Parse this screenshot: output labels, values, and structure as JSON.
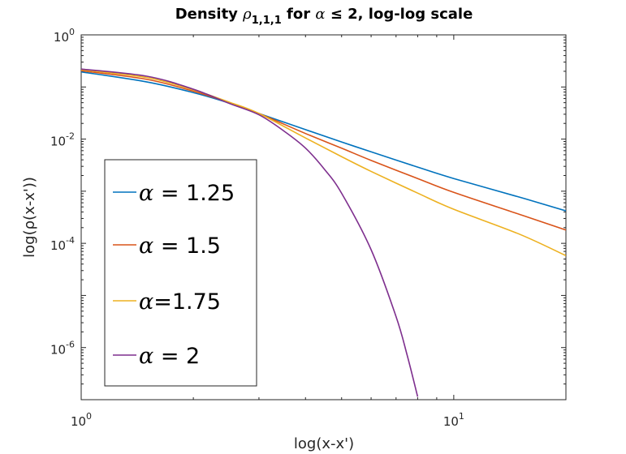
{
  "chart_data": {
    "type": "line",
    "title": {
      "prefix": "Density ",
      "symbol": "ρ",
      "subscript": "1,1,1",
      "middle": " for ",
      "alpha": "α",
      "condition": " ≤ 2, log-log scale"
    },
    "xlabel": "log(x-x')",
    "ylabel": "log(ρ(x-x'))",
    "x_scale": "log",
    "y_scale": "log",
    "xlim": [
      1,
      20
    ],
    "ylim": [
      1e-07,
      1
    ],
    "x_ticks": [
      {
        "value": 1,
        "base": "10",
        "exp": "0"
      },
      {
        "value": 10,
        "base": "10",
        "exp": "1"
      }
    ],
    "y_ticks": [
      {
        "value": 1,
        "base": "10",
        "exp": "0"
      },
      {
        "value": 0.01,
        "base": "10",
        "exp": "-2"
      },
      {
        "value": 0.0001,
        "base": "10",
        "exp": "-4"
      },
      {
        "value": 1e-06,
        "base": "10",
        "exp": "-6"
      }
    ],
    "grid": false,
    "legend_position": "left",
    "series": [
      {
        "label_symbol": "α",
        "label_rest": " = 1.25",
        "color": "#0072BD",
        "x": [
          1,
          1.5,
          2,
          2.5,
          3,
          4,
          5,
          6,
          8,
          10,
          15,
          20
        ],
        "y": [
          0.195,
          0.125,
          0.078,
          0.049,
          0.031,
          0.0152,
          0.0088,
          0.0057,
          0.0029,
          0.00175,
          0.00077,
          0.00042
        ]
      },
      {
        "label_symbol": "α",
        "label_rest": " = 1.5",
        "color": "#D95319",
        "x": [
          1,
          1.5,
          2,
          2.5,
          3,
          4,
          5,
          6,
          8,
          10,
          15,
          20
        ],
        "y": [
          0.205,
          0.14,
          0.083,
          0.05,
          0.031,
          0.0128,
          0.0067,
          0.0039,
          0.00175,
          0.00095,
          0.00036,
          0.00018
        ]
      },
      {
        "label_symbol": "α",
        "label_rest": "=1.75",
        "color": "#EDB120",
        "x": [
          1,
          1.5,
          2,
          2.5,
          3,
          4,
          5,
          6,
          8,
          10,
          15,
          20
        ],
        "y": [
          0.215,
          0.152,
          0.088,
          0.051,
          0.031,
          0.0105,
          0.0046,
          0.0024,
          0.00092,
          0.00045,
          0.00015,
          5.8e-05
        ]
      },
      {
        "label_symbol": "α",
        "label_rest": " = 2",
        "color": "#7E2F8E",
        "x": [
          1,
          1.5,
          2,
          2.5,
          3,
          3.5,
          4,
          4.5,
          5,
          6,
          7,
          7.5,
          8
        ],
        "y": [
          0.221,
          0.161,
          0.0905,
          0.0482,
          0.0293,
          0.0143,
          0.00672,
          0.00262,
          0.000913,
          7.55e-05,
          3.93e-06,
          7.07e-07,
          1.14e-07
        ]
      }
    ]
  }
}
